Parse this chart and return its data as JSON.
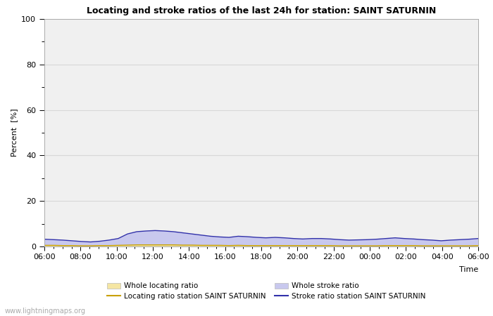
{
  "title": "Locating and stroke ratios of the last 24h for station: SAINT SATURNIN",
  "ylabel": "Percent  [%]",
  "xlabel": "Time",
  "xlim_labels": [
    "06:00",
    "08:00",
    "10:00",
    "12:00",
    "14:00",
    "16:00",
    "18:00",
    "20:00",
    "22:00",
    "00:00",
    "02:00",
    "04:00",
    "06:00"
  ],
  "ylim": [
    0,
    100
  ],
  "yticks": [
    0,
    20,
    40,
    60,
    80,
    100
  ],
  "minor_yticks": [
    10,
    30,
    50,
    70,
    90
  ],
  "background_color": "#ffffff",
  "plot_bg_color": "#f0f0f0",
  "grid_color": "#d8d8d8",
  "watermark": "www.lightningmaps.org",
  "whole_locating_color": "#f5e6a3",
  "whole_stroke_color": "#c8c8ee",
  "locating_line_color": "#c8a000",
  "stroke_line_color": "#3030aa",
  "whole_stroke_data": [
    3.2,
    3.0,
    2.8,
    2.5,
    2.2,
    2.0,
    2.3,
    2.8,
    3.5,
    5.5,
    6.5,
    6.8,
    7.0,
    6.8,
    6.5,
    6.0,
    5.5,
    5.0,
    4.5,
    4.2,
    4.0,
    4.5,
    4.3,
    4.0,
    3.8,
    4.0,
    3.8,
    3.5,
    3.3,
    3.5,
    3.5,
    3.3,
    3.0,
    2.8,
    2.9,
    3.0,
    3.2,
    3.5,
    3.8,
    3.5,
    3.3,
    3.0,
    2.8,
    2.5,
    2.8,
    3.0,
    3.2,
    3.5
  ],
  "whole_locating_data": [
    0.5,
    0.5,
    0.4,
    0.4,
    0.3,
    0.3,
    0.4,
    0.4,
    0.5,
    0.6,
    0.7,
    0.7,
    0.7,
    0.7,
    0.7,
    0.6,
    0.6,
    0.5,
    0.5,
    0.5,
    0.4,
    0.5,
    0.4,
    0.4,
    0.4,
    0.4,
    0.4,
    0.4,
    0.4,
    0.4,
    0.4,
    0.4,
    0.3,
    0.3,
    0.3,
    0.3,
    0.3,
    0.4,
    0.4,
    0.4,
    0.4,
    0.3,
    0.3,
    0.3,
    0.3,
    0.3,
    0.3,
    0.4
  ],
  "locating_line_data": [
    0.5,
    0.5,
    0.4,
    0.4,
    0.3,
    0.3,
    0.4,
    0.4,
    0.5,
    0.6,
    0.7,
    0.7,
    0.7,
    0.7,
    0.7,
    0.6,
    0.6,
    0.5,
    0.5,
    0.5,
    0.4,
    0.5,
    0.4,
    0.4,
    0.4,
    0.4,
    0.4,
    0.4,
    0.4,
    0.4,
    0.4,
    0.4,
    0.3,
    0.3,
    0.3,
    0.3,
    0.3,
    0.4,
    0.4,
    0.4,
    0.4,
    0.3,
    0.3,
    0.3,
    0.3,
    0.3,
    0.3,
    0.4
  ],
  "stroke_line_data": [
    3.2,
    3.0,
    2.8,
    2.5,
    2.2,
    2.0,
    2.3,
    2.8,
    3.5,
    5.5,
    6.5,
    6.8,
    7.0,
    6.8,
    6.5,
    6.0,
    5.5,
    5.0,
    4.5,
    4.2,
    4.0,
    4.5,
    4.3,
    4.0,
    3.8,
    4.0,
    3.8,
    3.5,
    3.3,
    3.5,
    3.5,
    3.3,
    3.0,
    2.8,
    2.9,
    3.0,
    3.2,
    3.5,
    3.8,
    3.5,
    3.3,
    3.0,
    2.8,
    2.5,
    2.8,
    3.0,
    3.2,
    3.5
  ],
  "legend_row1": [
    "Whole locating ratio",
    "Locating ratio station SAINT SATURNIN"
  ],
  "legend_row2": [
    "Whole stroke ratio",
    "Stroke ratio station SAINT SATURNIN"
  ]
}
